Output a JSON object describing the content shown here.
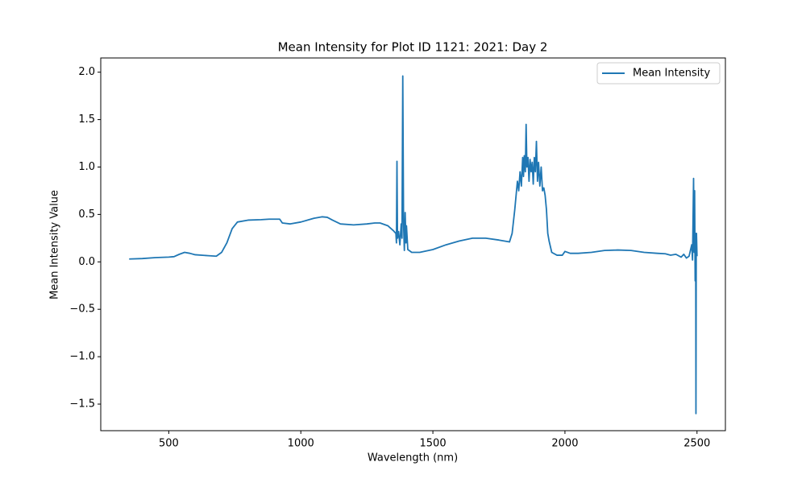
{
  "chart_data": {
    "type": "line",
    "title": "Mean Intensity for Plot ID 1121: 2021: Day 2",
    "x_label": "Wavelength (nm)",
    "y_label": "Mean Intensity Value",
    "legend": "upper right",
    "xlim": [
      242.5,
      2607.5
    ],
    "ylim": [
      -1.78,
      2.15
    ],
    "xticks": [
      500,
      1000,
      1500,
      2000,
      2500
    ],
    "yticks": [
      {
        "value": -1.5,
        "label": "−1.5"
      },
      {
        "value": -1.0,
        "label": "−1.0"
      },
      {
        "value": -0.5,
        "label": "−0.5"
      },
      {
        "value": 0,
        "label": "0.0"
      },
      {
        "value": 0.5,
        "label": "0.5"
      },
      {
        "value": 1.0,
        "label": "1.0"
      },
      {
        "value": 1.5,
        "label": "1.5"
      },
      {
        "value": 2.0,
        "label": "2.0"
      }
    ],
    "x": [
      350,
      400,
      450,
      500,
      520,
      540,
      560,
      580,
      600,
      650,
      680,
      700,
      720,
      740,
      760,
      800,
      850,
      880,
      920,
      930,
      960,
      1000,
      1050,
      1080,
      1100,
      1120,
      1150,
      1200,
      1250,
      1280,
      1300,
      1330,
      1350,
      1360,
      1362,
      1364,
      1366,
      1370,
      1375,
      1380,
      1383,
      1386,
      1389,
      1392,
      1395,
      1398,
      1400,
      1405,
      1410,
      1420,
      1450,
      1500,
      1550,
      1600,
      1650,
      1700,
      1750,
      1790,
      1800,
      1810,
      1820,
      1825,
      1830,
      1835,
      1840,
      1843,
      1846,
      1850,
      1853,
      1856,
      1860,
      1864,
      1868,
      1872,
      1876,
      1880,
      1884,
      1888,
      1892,
      1896,
      1900,
      1905,
      1910,
      1915,
      1920,
      1925,
      1930,
      1935,
      1940,
      1950,
      1970,
      1990,
      2000,
      2020,
      2050,
      2100,
      2150,
      2200,
      2250,
      2300,
      2350,
      2380,
      2400,
      2420,
      2440,
      2450,
      2460,
      2470,
      2480,
      2483,
      2487,
      2489,
      2491,
      2493,
      2495,
      2496,
      2497,
      2498,
      2500
    ],
    "series": [
      {
        "name": "Mean Intensity",
        "color": "#1f77b4",
        "values": [
          0.03,
          0.035,
          0.045,
          0.05,
          0.055,
          0.08,
          0.1,
          0.09,
          0.075,
          0.065,
          0.06,
          0.1,
          0.2,
          0.35,
          0.42,
          0.44,
          0.445,
          0.45,
          0.45,
          0.41,
          0.4,
          0.42,
          0.46,
          0.475,
          0.47,
          0.44,
          0.4,
          0.39,
          0.4,
          0.41,
          0.41,
          0.38,
          0.33,
          0.3,
          0.2,
          1.06,
          0.25,
          0.32,
          0.18,
          0.4,
          0.25,
          1.96,
          0.4,
          0.12,
          0.52,
          0.2,
          0.38,
          0.13,
          0.12,
          0.1,
          0.1,
          0.13,
          0.18,
          0.22,
          0.25,
          0.25,
          0.23,
          0.21,
          0.3,
          0.55,
          0.85,
          0.75,
          0.95,
          0.8,
          1.1,
          0.9,
          1.12,
          0.95,
          1.45,
          1.0,
          1.1,
          0.85,
          1.08,
          0.95,
          1.05,
          0.82,
          1.1,
          0.95,
          1.27,
          0.85,
          1.05,
          0.8,
          1.0,
          0.75,
          0.78,
          0.7,
          0.55,
          0.3,
          0.22,
          0.1,
          0.07,
          0.07,
          0.11,
          0.09,
          0.09,
          0.1,
          0.12,
          0.125,
          0.12,
          0.1,
          0.09,
          0.085,
          0.07,
          0.08,
          0.05,
          0.08,
          0.04,
          0.06,
          0.18,
          0.02,
          0.88,
          0.1,
          0.75,
          -0.2,
          0.3,
          -1.6,
          0.05,
          0.3,
          0.06
        ]
      }
    ]
  }
}
